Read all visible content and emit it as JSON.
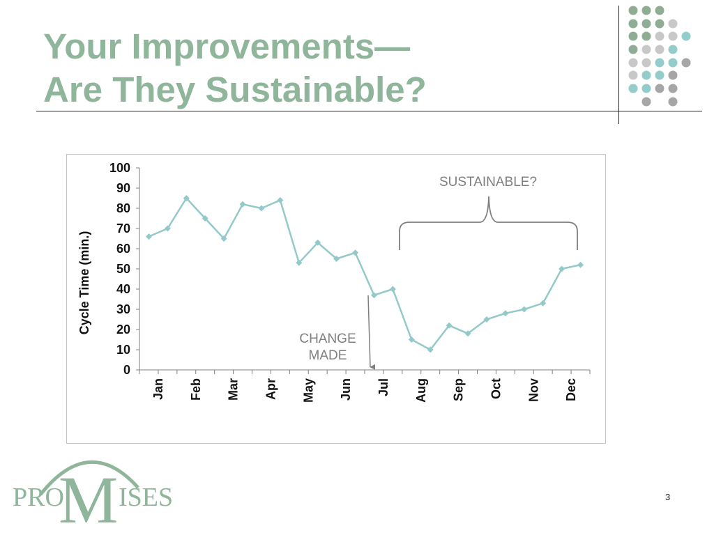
{
  "slide": {
    "title_line1": "Your Improvements—",
    "title_line2": "Are They Sustainable?",
    "page_number": "3"
  },
  "logo": {
    "left": "PRO",
    "center": "M",
    "right": "ISES"
  },
  "colors": {
    "title": "#8fb59a",
    "series": "#93c9c9",
    "annotation": "#7f7f7f",
    "dot_green": "#8fad95",
    "dot_light_gray": "#c8c8c8",
    "dot_teal": "#93cccb",
    "dot_dark_gray": "#a6a6a6"
  },
  "chart_data": {
    "type": "line",
    "title": "",
    "xlabel": "",
    "ylabel": "Cycle Time (min.)",
    "ylim": [
      0,
      100
    ],
    "yticks": [
      0,
      10,
      20,
      30,
      40,
      50,
      60,
      70,
      80,
      90,
      100
    ],
    "month_labels": [
      "Jan",
      "Feb",
      "Mar",
      "Apr",
      "May",
      "Jun",
      "Jul",
      "Aug",
      "Sep",
      "Oct",
      "Nov",
      "Dec"
    ],
    "series": [
      {
        "values": [
          66,
          70,
          85,
          75,
          65,
          82,
          80,
          84,
          53,
          63,
          55,
          58,
          37,
          40,
          15,
          10,
          22,
          18,
          25,
          28,
          30,
          33,
          50,
          52
        ]
      }
    ],
    "annotations": {
      "change_line1": "CHANGE",
      "change_line2": "MADE",
      "sustainable": "SUSTAINABLE?"
    },
    "grid": false,
    "legend": "none"
  }
}
